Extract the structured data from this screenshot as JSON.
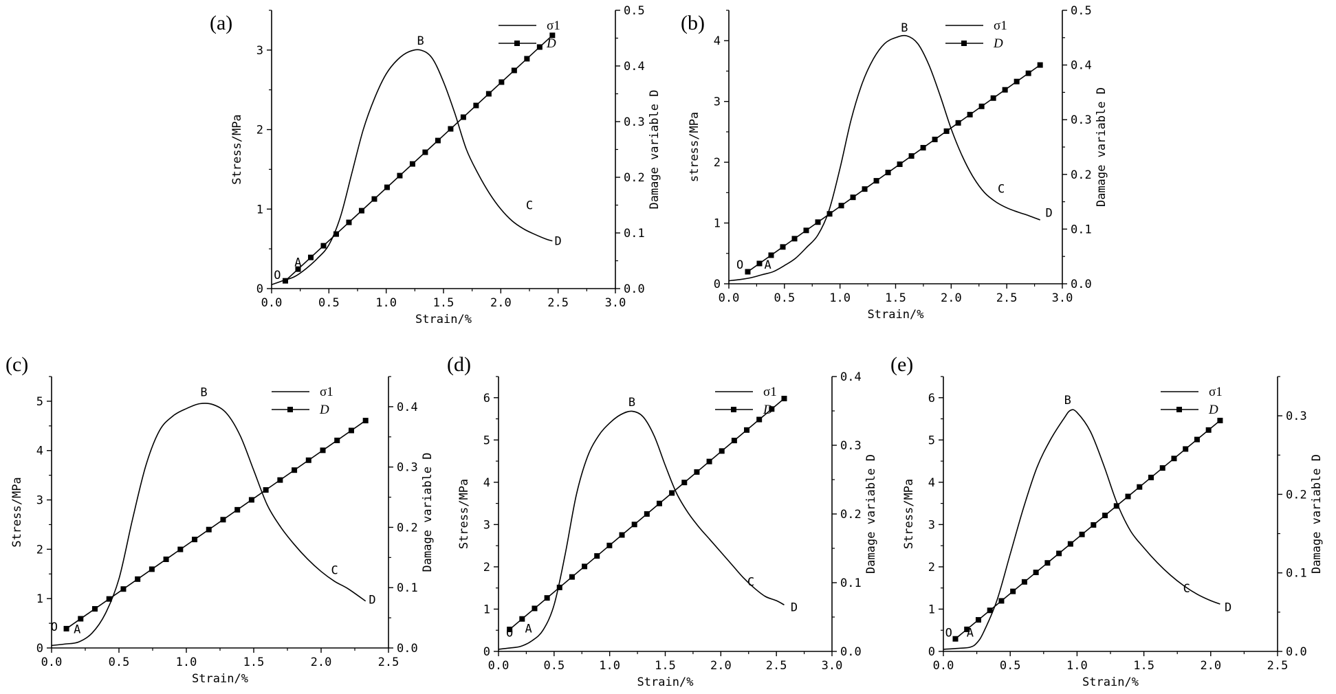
{
  "chart_data": [
    {
      "id": "a",
      "type": "line",
      "panel_label": "(a)",
      "xlabel": "Strain/%",
      "ylabel": "Stress/MPa",
      "y2label": "Damage variable D",
      "xlim": [
        0,
        3.0
      ],
      "xticks": [
        "0.0",
        "0.5",
        "1.0",
        "1.5",
        "2.0",
        "2.5",
        "3.0"
      ],
      "ylim": [
        0,
        3.5
      ],
      "yticks": [
        "0",
        "1",
        "2",
        "3"
      ],
      "y2lim": [
        0,
        0.5
      ],
      "y2ticks": [
        "0.0",
        "0.1",
        "0.2",
        "0.3",
        "0.4",
        "0.5"
      ],
      "legend": [
        "σ1",
        "D"
      ],
      "series": [
        {
          "name": "σ1",
          "x": [
            0,
            0.1,
            0.2,
            0.3,
            0.4,
            0.5,
            0.6,
            0.7,
            0.8,
            0.9,
            1.0,
            1.1,
            1.2,
            1.3,
            1.4,
            1.5,
            1.6,
            1.7,
            1.8,
            1.9,
            2.0,
            2.1,
            2.2,
            2.3,
            2.4,
            2.45
          ],
          "y": [
            0.05,
            0.1,
            0.15,
            0.25,
            0.38,
            0.55,
            0.9,
            1.45,
            2.0,
            2.4,
            2.7,
            2.88,
            2.98,
            3.0,
            2.9,
            2.6,
            2.2,
            1.75,
            1.45,
            1.2,
            1.0,
            0.85,
            0.75,
            0.68,
            0.62,
            0.6
          ]
        },
        {
          "name": "D",
          "axis": "right",
          "x_start": 0.12,
          "x_end": 2.45,
          "y_start": 0.014,
          "y_end": 0.455,
          "count": 22
        }
      ],
      "point_labels": [
        {
          "text": "O",
          "x": 0.05,
          "y": 0.12
        },
        {
          "text": "A",
          "x": 0.23,
          "y": 0.28
        },
        {
          "text": "B",
          "x": 1.3,
          "y": 3.07
        },
        {
          "text": "C",
          "x": 2.25,
          "y": 1.0
        },
        {
          "text": "D",
          "x": 2.5,
          "y": 0.55
        }
      ]
    },
    {
      "id": "b",
      "type": "line",
      "panel_label": "(b)",
      "xlabel": "Strain/%",
      "ylabel": "stress/MPa",
      "y2label": "Damage variable D",
      "xlim": [
        0,
        3.0
      ],
      "xticks": [
        "0.0",
        "0.5",
        "1.0",
        "1.5",
        "2.0",
        "2.5",
        "3.0"
      ],
      "ylim": [
        0,
        4.5
      ],
      "yticks": [
        "0",
        "1",
        "2",
        "3",
        "4"
      ],
      "y2lim": [
        0,
        0.5
      ],
      "y2ticks": [
        "0.0",
        "0.1",
        "0.2",
        "0.3",
        "0.4",
        "0.5"
      ],
      "legend": [
        "σ1",
        "D"
      ],
      "series": [
        {
          "name": "σ1",
          "x": [
            0,
            0.1,
            0.2,
            0.3,
            0.4,
            0.5,
            0.6,
            0.7,
            0.8,
            0.9,
            1.0,
            1.1,
            1.2,
            1.3,
            1.4,
            1.5,
            1.6,
            1.7,
            1.8,
            1.9,
            2.0,
            2.1,
            2.2,
            2.3,
            2.4,
            2.5,
            2.6,
            2.7,
            2.8
          ],
          "y": [
            0.05,
            0.07,
            0.1,
            0.15,
            0.2,
            0.3,
            0.42,
            0.6,
            0.8,
            1.2,
            1.9,
            2.7,
            3.3,
            3.7,
            3.95,
            4.05,
            4.08,
            3.95,
            3.6,
            3.1,
            2.55,
            2.1,
            1.75,
            1.5,
            1.35,
            1.25,
            1.18,
            1.12,
            1.05
          ]
        },
        {
          "name": "D",
          "axis": "right",
          "x_start": 0.17,
          "x_end": 2.8,
          "y_start": 0.022,
          "y_end": 0.4,
          "count": 26
        }
      ],
      "point_labels": [
        {
          "text": "O",
          "x": 0.1,
          "y": 0.25
        },
        {
          "text": "A",
          "x": 0.35,
          "y": 0.25
        },
        {
          "text": "B",
          "x": 1.58,
          "y": 4.15
        },
        {
          "text": "C",
          "x": 2.45,
          "y": 1.5
        },
        {
          "text": "D",
          "x": 2.88,
          "y": 1.1
        }
      ]
    },
    {
      "id": "c",
      "type": "line",
      "panel_label": "(c)",
      "xlabel": "Strain/%",
      "ylabel": "Stress/MPa",
      "y2label": "Damage variable D",
      "xlim": [
        0,
        2.5
      ],
      "xticks": [
        "0.0",
        "0.5",
        "1.0",
        "1.5",
        "2.0",
        "2.5"
      ],
      "ylim": [
        0,
        5.5
      ],
      "yticks": [
        "0",
        "1",
        "2",
        "3",
        "4",
        "5"
      ],
      "y2lim": [
        0,
        0.45
      ],
      "y2ticks": [
        "0.0",
        "0.1",
        "0.2",
        "0.3",
        "0.4"
      ],
      "legend": [
        "σ1",
        "D"
      ],
      "series": [
        {
          "name": "σ1",
          "x": [
            0,
            0.1,
            0.2,
            0.3,
            0.4,
            0.5,
            0.6,
            0.7,
            0.8,
            0.9,
            1.0,
            1.1,
            1.2,
            1.3,
            1.4,
            1.5,
            1.6,
            1.7,
            1.8,
            1.9,
            2.0,
            2.1,
            2.2,
            2.33
          ],
          "y": [
            0.05,
            0.08,
            0.12,
            0.3,
            0.7,
            1.4,
            2.6,
            3.7,
            4.4,
            4.7,
            4.85,
            4.95,
            4.93,
            4.75,
            4.3,
            3.6,
            2.9,
            2.45,
            2.1,
            1.8,
            1.55,
            1.35,
            1.2,
            0.95
          ]
        },
        {
          "name": "D",
          "axis": "right",
          "x_start": 0.11,
          "x_end": 2.33,
          "y_start": 0.032,
          "y_end": 0.377,
          "count": 22
        }
      ],
      "point_labels": [
        {
          "text": "O",
          "x": 0.02,
          "y": 0.35
        },
        {
          "text": "A",
          "x": 0.19,
          "y": 0.3
        },
        {
          "text": "B",
          "x": 1.13,
          "y": 5.1
        },
        {
          "text": "C",
          "x": 2.1,
          "y": 1.5
        },
        {
          "text": "D",
          "x": 2.38,
          "y": 0.9
        }
      ]
    },
    {
      "id": "d",
      "type": "line",
      "panel_label": "(d)",
      "xlabel": "Strain/%",
      "ylabel": "Stress/MPa",
      "y2label": "Damage variable D",
      "xlim": [
        0,
        3.0
      ],
      "xticks": [
        "0.0",
        "0.5",
        "1.0",
        "1.5",
        "2.0",
        "2.5",
        "3.0"
      ],
      "ylim": [
        0,
        6.5
      ],
      "yticks": [
        "0",
        "1",
        "2",
        "3",
        "4",
        "5",
        "6"
      ],
      "y2lim": [
        0,
        0.4
      ],
      "y2ticks": [
        "0.0",
        "0.1",
        "0.2",
        "0.3",
        "0.4"
      ],
      "legend": [
        "σ1",
        "D"
      ],
      "series": [
        {
          "name": "σ1",
          "x": [
            0,
            0.1,
            0.2,
            0.3,
            0.4,
            0.5,
            0.6,
            0.7,
            0.8,
            0.9,
            1.0,
            1.1,
            1.2,
            1.3,
            1.4,
            1.5,
            1.6,
            1.7,
            1.8,
            1.9,
            2.0,
            2.1,
            2.2,
            2.3,
            2.4,
            2.5,
            2.57
          ],
          "y": [
            0.05,
            0.08,
            0.12,
            0.25,
            0.5,
            1.1,
            2.3,
            3.7,
            4.6,
            5.1,
            5.4,
            5.6,
            5.68,
            5.55,
            5.1,
            4.4,
            3.75,
            3.3,
            2.95,
            2.65,
            2.35,
            2.05,
            1.75,
            1.5,
            1.3,
            1.2,
            1.1
          ]
        },
        {
          "name": "D",
          "axis": "right",
          "x_start": 0.1,
          "x_end": 2.57,
          "y_start": 0.032,
          "y_end": 0.368,
          "count": 23
        }
      ],
      "point_labels": [
        {
          "text": "O",
          "x": 0.1,
          "y": 0.35
        },
        {
          "text": "A",
          "x": 0.27,
          "y": 0.45
        },
        {
          "text": "B",
          "x": 1.2,
          "y": 5.8
        },
        {
          "text": "C",
          "x": 2.27,
          "y": 1.55
        },
        {
          "text": "D",
          "x": 2.66,
          "y": 0.95
        }
      ]
    },
    {
      "id": "e",
      "type": "line",
      "panel_label": "(e)",
      "xlabel": "Strain/%",
      "ylabel": "Stress/MPa",
      "y2label": "Damage variable D",
      "xlim": [
        0,
        2.5
      ],
      "xticks": [
        "0.0",
        "0.5",
        "1.0",
        "1.5",
        "2.0",
        "2.5"
      ],
      "ylim": [
        0,
        6.5
      ],
      "yticks": [
        "0",
        "1",
        "2",
        "3",
        "4",
        "5",
        "6"
      ],
      "y2lim": [
        0,
        0.35
      ],
      "y2ticks": [
        "0.0",
        "0.1",
        "0.2",
        "0.3"
      ],
      "legend": [
        "σ1",
        "D"
      ],
      "series": [
        {
          "name": "σ1",
          "x": [
            0,
            0.1,
            0.2,
            0.25,
            0.3,
            0.4,
            0.5,
            0.6,
            0.7,
            0.8,
            0.9,
            0.95,
            1.0,
            1.1,
            1.2,
            1.3,
            1.4,
            1.5,
            1.6,
            1.7,
            1.8,
            1.9,
            2.0,
            2.07
          ],
          "y": [
            0.05,
            0.07,
            0.1,
            0.2,
            0.45,
            1.2,
            2.3,
            3.4,
            4.35,
            5.0,
            5.5,
            5.7,
            5.65,
            5.2,
            4.4,
            3.5,
            2.85,
            2.45,
            2.1,
            1.8,
            1.55,
            1.35,
            1.2,
            1.12
          ]
        },
        {
          "name": "D",
          "axis": "right",
          "x_start": 0.09,
          "x_end": 2.07,
          "y_start": 0.016,
          "y_end": 0.294,
          "count": 24
        }
      ],
      "point_labels": [
        {
          "text": "O",
          "x": 0.04,
          "y": 0.35
        },
        {
          "text": "A",
          "x": 0.2,
          "y": 0.35
        },
        {
          "text": "B",
          "x": 0.93,
          "y": 5.85
        },
        {
          "text": "C",
          "x": 1.82,
          "y": 1.4
        },
        {
          "text": "D",
          "x": 2.13,
          "y": 0.95
        }
      ]
    }
  ]
}
